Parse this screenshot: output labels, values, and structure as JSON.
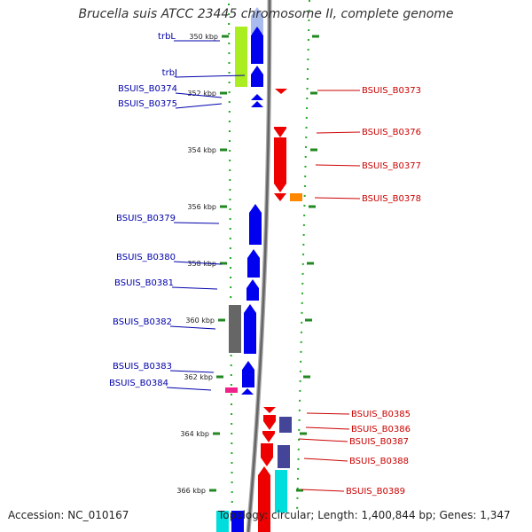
{
  "title": "Brucella suis ATCC 23445 chromosome II, complete genome",
  "footer": {
    "accession": "Accession: NC_010167",
    "stats": "Topology: circular; Length: 1,400,844 bp; Genes: 1,347"
  },
  "colors": {
    "forward": "#0000ee",
    "reverse": "#ee0000",
    "gray": "#666666",
    "lime": "#aaee22",
    "orange": "#ff8800",
    "magenta": "#ee2288",
    "slate": "#444499",
    "cyan": "#00dddd",
    "dots": "#22aa22",
    "label_forward": "#0000aa",
    "label_reverse": "#cc0000"
  },
  "ticks": [
    {
      "label": "350 kbp"
    },
    {
      "label": "352 kbp"
    },
    {
      "label": "354 kbp"
    },
    {
      "label": "356 kbp"
    },
    {
      "label": "358 kbp"
    },
    {
      "label": "360 kbp"
    },
    {
      "label": "362 kbp"
    },
    {
      "label": "364 kbp"
    },
    {
      "label": "366 kbp"
    }
  ],
  "genes": {
    "left": [
      {
        "label": "trbL"
      },
      {
        "label": "trbJ"
      },
      {
        "label": "BSUIS_B0374"
      },
      {
        "label": "BSUIS_B0375"
      },
      {
        "label": "BSUIS_B0379"
      },
      {
        "label": "BSUIS_B0380"
      },
      {
        "label": "BSUIS_B0381"
      },
      {
        "label": "BSUIS_B0382"
      },
      {
        "label": "BSUIS_B0383"
      },
      {
        "label": "BSUIS_B0384"
      }
    ],
    "right": [
      {
        "label": "BSUIS_B0373"
      },
      {
        "label": "BSUIS_B0376"
      },
      {
        "label": "BSUIS_B0377"
      },
      {
        "label": "BSUIS_B0378"
      },
      {
        "label": "BSUIS_B0385"
      },
      {
        "label": "BSUIS_B0386"
      },
      {
        "label": "BSUIS_B0387"
      },
      {
        "label": "BSUIS_B0388"
      },
      {
        "label": "BSUIS_B0389"
      }
    ]
  }
}
